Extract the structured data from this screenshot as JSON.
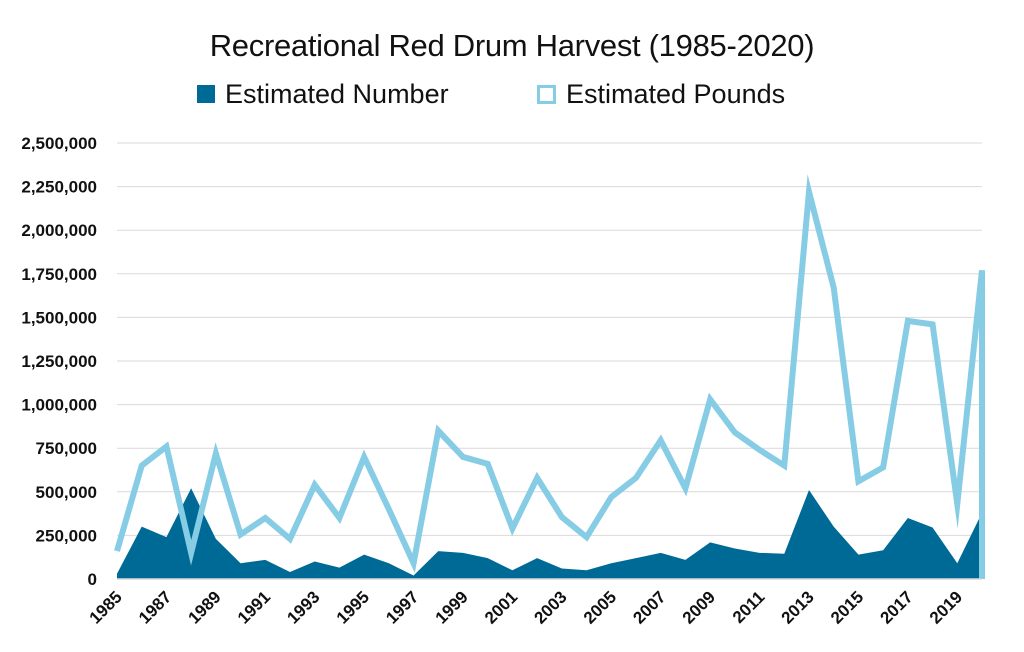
{
  "chart_data": {
    "type": "area",
    "title": "Recreational Red Drum Harvest (1985-2020)",
    "xlabel": "",
    "ylabel": "",
    "ylim": [
      0,
      2500000
    ],
    "y_ticks": [
      0,
      250000,
      500000,
      750000,
      1000000,
      1250000,
      1500000,
      1750000,
      2000000,
      2250000,
      2500000
    ],
    "y_tick_labels": [
      "0",
      "250,000",
      "500,000",
      "750,000",
      "1,000,000",
      "1,250,000",
      "1,500,000",
      "1,750,000",
      "2,000,000",
      "2,250,000",
      "2,500,000"
    ],
    "x_tick_labels": [
      "1985",
      "1987",
      "1989",
      "1991",
      "1993",
      "1995",
      "1997",
      "1999",
      "2001",
      "2003",
      "2005",
      "2007",
      "2009",
      "2011",
      "2013",
      "2015",
      "2017",
      "2019"
    ],
    "grid": true,
    "legend_position": "top",
    "x": [
      1985,
      1986,
      1987,
      1988,
      1989,
      1990,
      1991,
      1992,
      1993,
      1994,
      1995,
      1996,
      1997,
      1998,
      1999,
      2000,
      2001,
      2002,
      2003,
      2004,
      2005,
      2006,
      2007,
      2008,
      2009,
      2010,
      2011,
      2012,
      2013,
      2014,
      2015,
      2016,
      2017,
      2018,
      2019,
      2020
    ],
    "series": [
      {
        "name": "Estimated Number",
        "style": "area",
        "color": "#006a96",
        "values": [
          30000,
          300000,
          240000,
          520000,
          230000,
          90000,
          110000,
          40000,
          100000,
          65000,
          140000,
          90000,
          20000,
          160000,
          150000,
          120000,
          50000,
          120000,
          60000,
          50000,
          90000,
          120000,
          150000,
          110000,
          210000,
          175000,
          150000,
          145000,
          510000,
          300000,
          140000,
          165000,
          350000,
          295000,
          90000,
          380000
        ]
      },
      {
        "name": "Estimated Pounds",
        "style": "line",
        "color": "#86cce5",
        "values": [
          160000,
          650000,
          760000,
          150000,
          720000,
          255000,
          350000,
          230000,
          540000,
          350000,
          700000,
          400000,
          90000,
          850000,
          700000,
          660000,
          290000,
          580000,
          355000,
          240000,
          470000,
          580000,
          795000,
          520000,
          1030000,
          840000,
          740000,
          650000,
          2220000,
          1670000,
          560000,
          640000,
          1480000,
          1460000,
          430000,
          1770000
        ]
      }
    ]
  }
}
